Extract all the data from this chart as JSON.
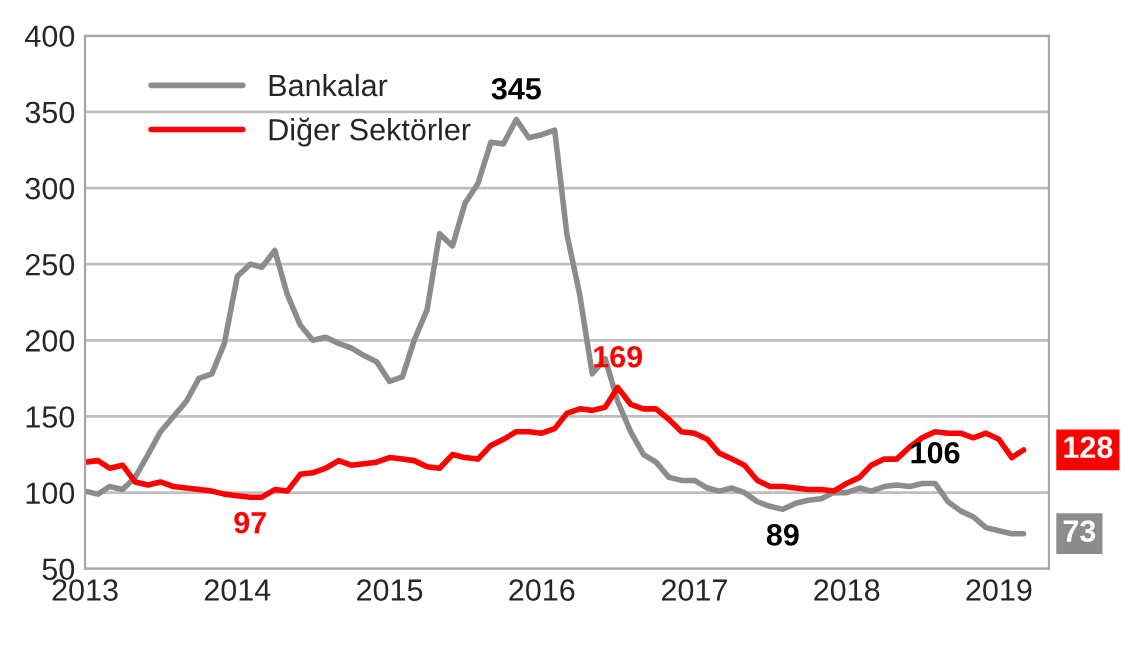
{
  "chart_data": {
    "type": "line",
    "x": [
      "2013-01",
      "2013-02",
      "2013-03",
      "2013-04",
      "2013-05",
      "2013-06",
      "2013-07",
      "2013-08",
      "2013-09",
      "2013-10",
      "2013-11",
      "2013-12",
      "2014-01",
      "2014-02",
      "2014-03",
      "2014-04",
      "2014-05",
      "2014-06",
      "2014-07",
      "2014-08",
      "2014-09",
      "2014-10",
      "2014-11",
      "2014-12",
      "2015-01",
      "2015-02",
      "2015-03",
      "2015-04",
      "2015-05",
      "2015-06",
      "2015-07",
      "2015-08",
      "2015-09",
      "2015-10",
      "2015-11",
      "2015-12",
      "2016-01",
      "2016-02",
      "2016-03",
      "2016-04",
      "2016-05",
      "2016-06",
      "2016-07",
      "2016-08",
      "2016-09",
      "2016-10",
      "2016-11",
      "2016-12",
      "2017-01",
      "2017-02",
      "2017-03",
      "2017-04",
      "2017-05",
      "2017-06",
      "2017-07",
      "2017-08",
      "2017-09",
      "2017-10",
      "2017-11",
      "2017-12",
      "2018-01",
      "2018-02",
      "2018-03",
      "2018-04",
      "2018-05",
      "2018-06",
      "2018-07",
      "2018-08",
      "2018-09",
      "2018-10",
      "2018-11",
      "2018-12",
      "2019-01",
      "2019-02",
      "2019-03"
    ],
    "series": [
      {
        "name": "Bankalar",
        "color": "#8c8c8c",
        "values": [
          101,
          99,
          104,
          102,
          110,
          125,
          140,
          150,
          160,
          175,
          178,
          198,
          242,
          250,
          248,
          259,
          230,
          210,
          200,
          202,
          198,
          195,
          190,
          186,
          173,
          176,
          200,
          220,
          270,
          262,
          290,
          303,
          330,
          329,
          345,
          333,
          335,
          338,
          270,
          230,
          178,
          188,
          160,
          140,
          125,
          120,
          110,
          108,
          108,
          103,
          101,
          103,
          100,
          94,
          91,
          89,
          93,
          95,
          96,
          100,
          100,
          103,
          101,
          104,
          105,
          104,
          106,
          106,
          94,
          88,
          84,
          77,
          75,
          73,
          73
        ],
        "value_labels": [
          null,
          null,
          null,
          null,
          null,
          null,
          null,
          null,
          null,
          null,
          null,
          null,
          null,
          null,
          null,
          null,
          null,
          null,
          null,
          null,
          null,
          null,
          null,
          null,
          null,
          null,
          null,
          null,
          null,
          null,
          null,
          null,
          null,
          null,
          "345",
          null,
          null,
          null,
          null,
          null,
          null,
          null,
          null,
          null,
          null,
          null,
          null,
          null,
          null,
          null,
          null,
          null,
          null,
          null,
          null,
          "89",
          null,
          null,
          null,
          null,
          null,
          null,
          null,
          null,
          null,
          null,
          null,
          "106",
          null,
          null,
          null,
          null,
          null,
          null,
          "73"
        ]
      },
      {
        "name": "Diğer Sektörler",
        "color": "#ff0000",
        "values": [
          120,
          121,
          116,
          118,
          107,
          105,
          107,
          104,
          103,
          102,
          101,
          99,
          98,
          97,
          97,
          102,
          101,
          112,
          113,
          116,
          121,
          118,
          119,
          120,
          123,
          122,
          121,
          117,
          116,
          125,
          123,
          122,
          131,
          135,
          140,
          140,
          139,
          142,
          152,
          155,
          154,
          156,
          169,
          158,
          155,
          155,
          148,
          140,
          139,
          135,
          126,
          122,
          118,
          108,
          104,
          104,
          103,
          102,
          102,
          101,
          106,
          110,
          118,
          122,
          122,
          130,
          136,
          140,
          139,
          139,
          136,
          139,
          135,
          123,
          128
        ],
        "value_labels": [
          null,
          null,
          null,
          null,
          null,
          null,
          null,
          null,
          null,
          null,
          null,
          null,
          null,
          "97",
          null,
          null,
          null,
          null,
          null,
          null,
          null,
          null,
          null,
          null,
          null,
          null,
          null,
          null,
          null,
          null,
          null,
          null,
          null,
          null,
          null,
          null,
          null,
          null,
          null,
          null,
          null,
          null,
          "169",
          null,
          null,
          null,
          null,
          null,
          null,
          null,
          null,
          null,
          null,
          null,
          null,
          null,
          null,
          null,
          null,
          null,
          null,
          null,
          null,
          null,
          null,
          null,
          null,
          null,
          null,
          null,
          null,
          null,
          null,
          null,
          "128"
        ]
      }
    ],
    "xlim": [
      "2013-01",
      "2019-05"
    ],
    "xticks": [
      {
        "value": "2013-01",
        "label": "2013"
      },
      {
        "value": "2014-01",
        "label": "2014"
      },
      {
        "value": "2015-01",
        "label": "2015"
      },
      {
        "value": "2016-01",
        "label": "2016"
      },
      {
        "value": "2017-01",
        "label": "2017"
      },
      {
        "value": "2018-01",
        "label": "2018"
      },
      {
        "value": "2019-01",
        "label": "2019"
      }
    ],
    "ylim": [
      50,
      400
    ],
    "yticks": [
      50,
      100,
      150,
      200,
      250,
      300,
      350,
      400
    ],
    "grid": "y",
    "legend": "top left",
    "line_style": "solid",
    "marker": "none"
  }
}
